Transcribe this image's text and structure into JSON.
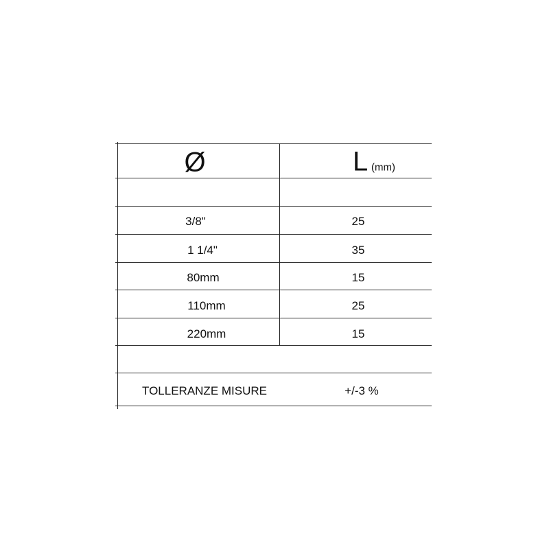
{
  "header": {
    "diameter_symbol": "Ø",
    "length_symbol": "L",
    "length_unit": "(mm)"
  },
  "rows": [
    {
      "diameter": "3/8\"",
      "length": "25"
    },
    {
      "diameter": "1 1/4\"",
      "length": "35"
    },
    {
      "diameter": "80mm",
      "length": "15"
    },
    {
      "diameter": "110mm",
      "length": "25"
    },
    {
      "diameter": "220mm",
      "length": "15"
    }
  ],
  "tolerance": {
    "label": "TOLLERANZE MISURE",
    "value": "+/-3 %"
  }
}
